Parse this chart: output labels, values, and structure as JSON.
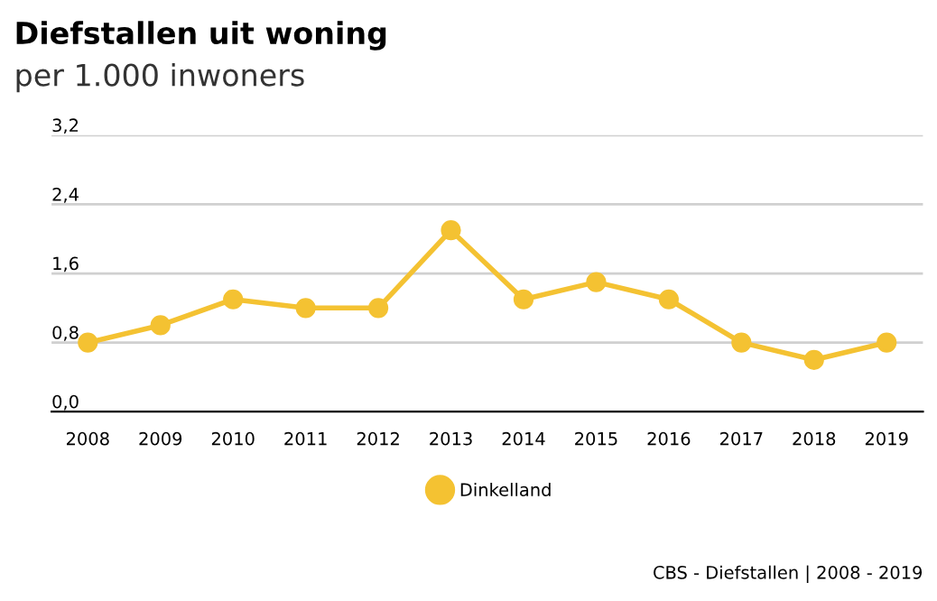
{
  "chart_data": {
    "type": "line",
    "title": "Diefstallen uit woning",
    "subtitle": "per 1.000 inwoners",
    "categories": [
      "2008",
      "2009",
      "2010",
      "2011",
      "2012",
      "2013",
      "2014",
      "2015",
      "2016",
      "2017",
      "2018",
      "2019"
    ],
    "series": [
      {
        "name": "Dinkelland",
        "color": "#f4c232",
        "values": [
          0.8,
          1.0,
          1.3,
          1.2,
          1.2,
          2.1,
          1.3,
          1.5,
          1.3,
          0.8,
          0.6,
          0.8
        ]
      }
    ],
    "ylim": [
      0,
      3.2
    ],
    "yticks": [
      {
        "value": 0,
        "label": "0,0"
      },
      {
        "value": 0.8,
        "label": "0,8"
      },
      {
        "value": 1.6,
        "label": "1,6"
      },
      {
        "value": 2.4,
        "label": "2,4"
      },
      {
        "value": 3.2,
        "label": "3,2"
      }
    ],
    "grid": "y",
    "legend": "bottom",
    "marker": "circle",
    "line_style": "solid",
    "annotations": [
      "CBS - Diefstallen | 2008 - 2019"
    ]
  }
}
